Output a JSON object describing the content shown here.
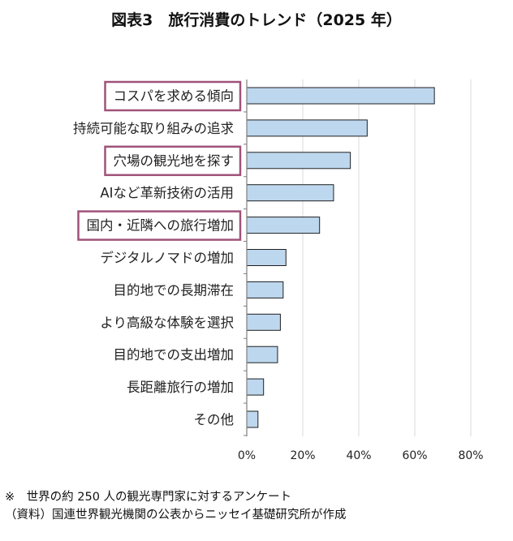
{
  "chart_data": {
    "type": "bar",
    "orientation": "horizontal",
    "title": "図表3　旅行消費のトレンド（2025 年）",
    "categories": [
      "コスパを求める傾向",
      "持続可能な取り組みの追求",
      "穴場の観光地を探す",
      "AIなど革新技術の活用",
      "国内・近隣への旅行増加",
      "デジタルノマドの増加",
      "目的地での長期滞在",
      "より高級な体験を選択",
      "目的地での支出増加",
      "長距離旅行の増加",
      "その他"
    ],
    "values": [
      67,
      43,
      37,
      31,
      26,
      14,
      13,
      12,
      11,
      6,
      4
    ],
    "highlighted": [
      true,
      false,
      true,
      false,
      true,
      false,
      false,
      false,
      false,
      false,
      false
    ],
    "xlim": [
      0,
      80
    ],
    "xticks": [
      0,
      20,
      40,
      60,
      80
    ],
    "tick_labels": [
      "0%",
      "20%",
      "40%",
      "60%",
      "80%"
    ],
    "grid": true,
    "legend": "none",
    "colors": {
      "bar_fill": "#bdd7ee",
      "bar_stroke": "#1f1f1f",
      "highlight_box": "#a0527a",
      "grid": "#d9d9d9",
      "axis": "#7f7f7f"
    }
  },
  "notes": [
    "※　世界の約 250 人の観光専門家に対するアンケート",
    "（資料）国連世界観光機関の公表からニッセイ基礎研究所が作成"
  ]
}
